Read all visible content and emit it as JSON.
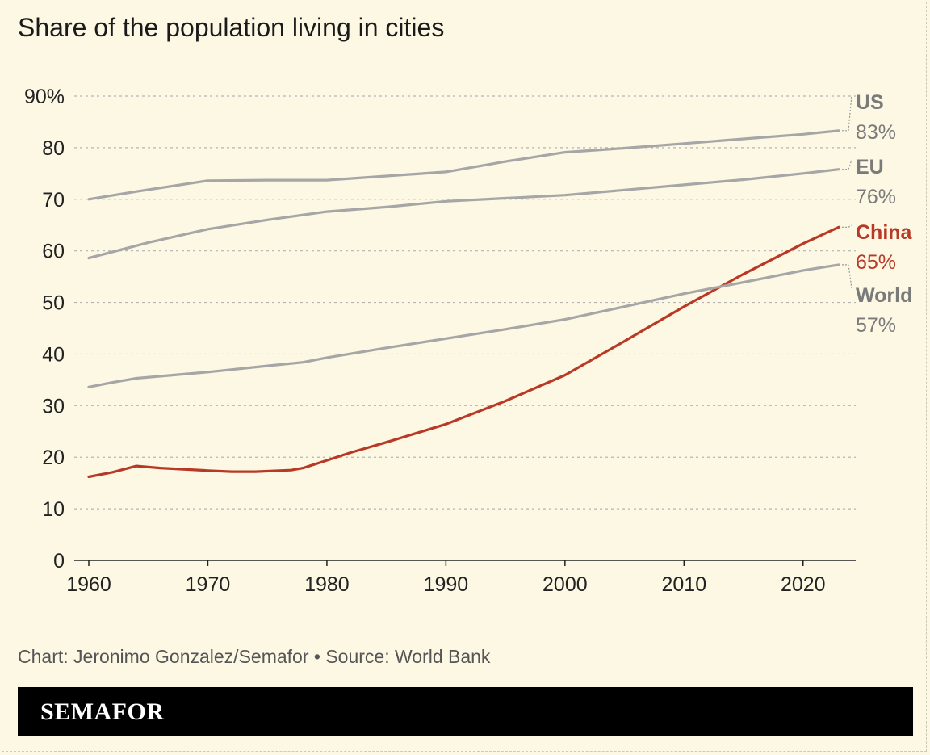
{
  "title": "Share of the population living in cities",
  "credit": "Chart: Jeronimo Gonzalez/Semafor • Source: World Bank",
  "brand": "SEMAFOR",
  "colors": {
    "background": "#fdf8e4",
    "grey_series": "#a6a6a6",
    "china": "#b83a26",
    "grid": "#b3b3b3"
  },
  "chart_data": {
    "type": "line",
    "title": "Share of the population living in cities",
    "xlabel": "",
    "ylabel": "",
    "xlim": [
      1960,
      2024
    ],
    "ylim": [
      0,
      90
    ],
    "x_ticks": [
      1960,
      1970,
      1980,
      1990,
      2000,
      2010,
      2020
    ],
    "y_ticks": [
      0,
      10,
      20,
      30,
      40,
      50,
      60,
      70,
      80,
      90
    ],
    "y_tick_labels": [
      "0",
      "10",
      "20",
      "30",
      "40",
      "50",
      "60",
      "70",
      "80",
      "90%"
    ],
    "grid": "horizontal dashed",
    "legend": "direct labels at right end of lines",
    "series": [
      {
        "name": "US",
        "end_label": "83%",
        "color": "#a6a6a6",
        "label_color": "#7a7a7a",
        "points": [
          [
            1960,
            70.0
          ],
          [
            1964,
            71.5
          ],
          [
            1970,
            73.6
          ],
          [
            1975,
            73.7
          ],
          [
            1980,
            73.7
          ],
          [
            1985,
            74.5
          ],
          [
            1990,
            75.3
          ],
          [
            1995,
            77.3
          ],
          [
            2000,
            79.1
          ],
          [
            2005,
            79.9
          ],
          [
            2010,
            80.8
          ],
          [
            2015,
            81.7
          ],
          [
            2020,
            82.6
          ],
          [
            2023,
            83.3
          ]
        ]
      },
      {
        "name": "EU",
        "end_label": "76%",
        "color": "#a6a6a6",
        "label_color": "#7a7a7a",
        "points": [
          [
            1960,
            58.6
          ],
          [
            1965,
            61.6
          ],
          [
            1970,
            64.2
          ],
          [
            1975,
            66.0
          ],
          [
            1980,
            67.6
          ],
          [
            1985,
            68.5
          ],
          [
            1990,
            69.6
          ],
          [
            1995,
            70.2
          ],
          [
            2000,
            70.8
          ],
          [
            2005,
            71.8
          ],
          [
            2010,
            72.8
          ],
          [
            2015,
            73.8
          ],
          [
            2020,
            75.0
          ],
          [
            2023,
            75.8
          ]
        ]
      },
      {
        "name": "China",
        "end_label": "65%",
        "color": "#b83a26",
        "label_color": "#b83a26",
        "points": [
          [
            1960,
            16.2
          ],
          [
            1962,
            17.1
          ],
          [
            1964,
            18.3
          ],
          [
            1966,
            17.9
          ],
          [
            1970,
            17.4
          ],
          [
            1972,
            17.2
          ],
          [
            1974,
            17.2
          ],
          [
            1976,
            17.4
          ],
          [
            1977,
            17.5
          ],
          [
            1978,
            17.9
          ],
          [
            1980,
            19.4
          ],
          [
            1982,
            20.9
          ],
          [
            1985,
            22.9
          ],
          [
            1990,
            26.4
          ],
          [
            1995,
            30.9
          ],
          [
            2000,
            35.9
          ],
          [
            2005,
            42.5
          ],
          [
            2010,
            49.2
          ],
          [
            2015,
            55.5
          ],
          [
            2020,
            61.4
          ],
          [
            2023,
            64.6
          ]
        ]
      },
      {
        "name": "World",
        "end_label": "57%",
        "color": "#a6a6a6",
        "label_color": "#7a7a7a",
        "points": [
          [
            1960,
            33.6
          ],
          [
            1962,
            34.5
          ],
          [
            1964,
            35.3
          ],
          [
            1970,
            36.5
          ],
          [
            1975,
            37.7
          ],
          [
            1978,
            38.4
          ],
          [
            1980,
            39.3
          ],
          [
            1985,
            41.2
          ],
          [
            1990,
            43.0
          ],
          [
            1995,
            44.8
          ],
          [
            2000,
            46.7
          ],
          [
            2005,
            49.2
          ],
          [
            2010,
            51.7
          ],
          [
            2015,
            53.9
          ],
          [
            2020,
            56.2
          ],
          [
            2023,
            57.3
          ]
        ]
      }
    ]
  }
}
